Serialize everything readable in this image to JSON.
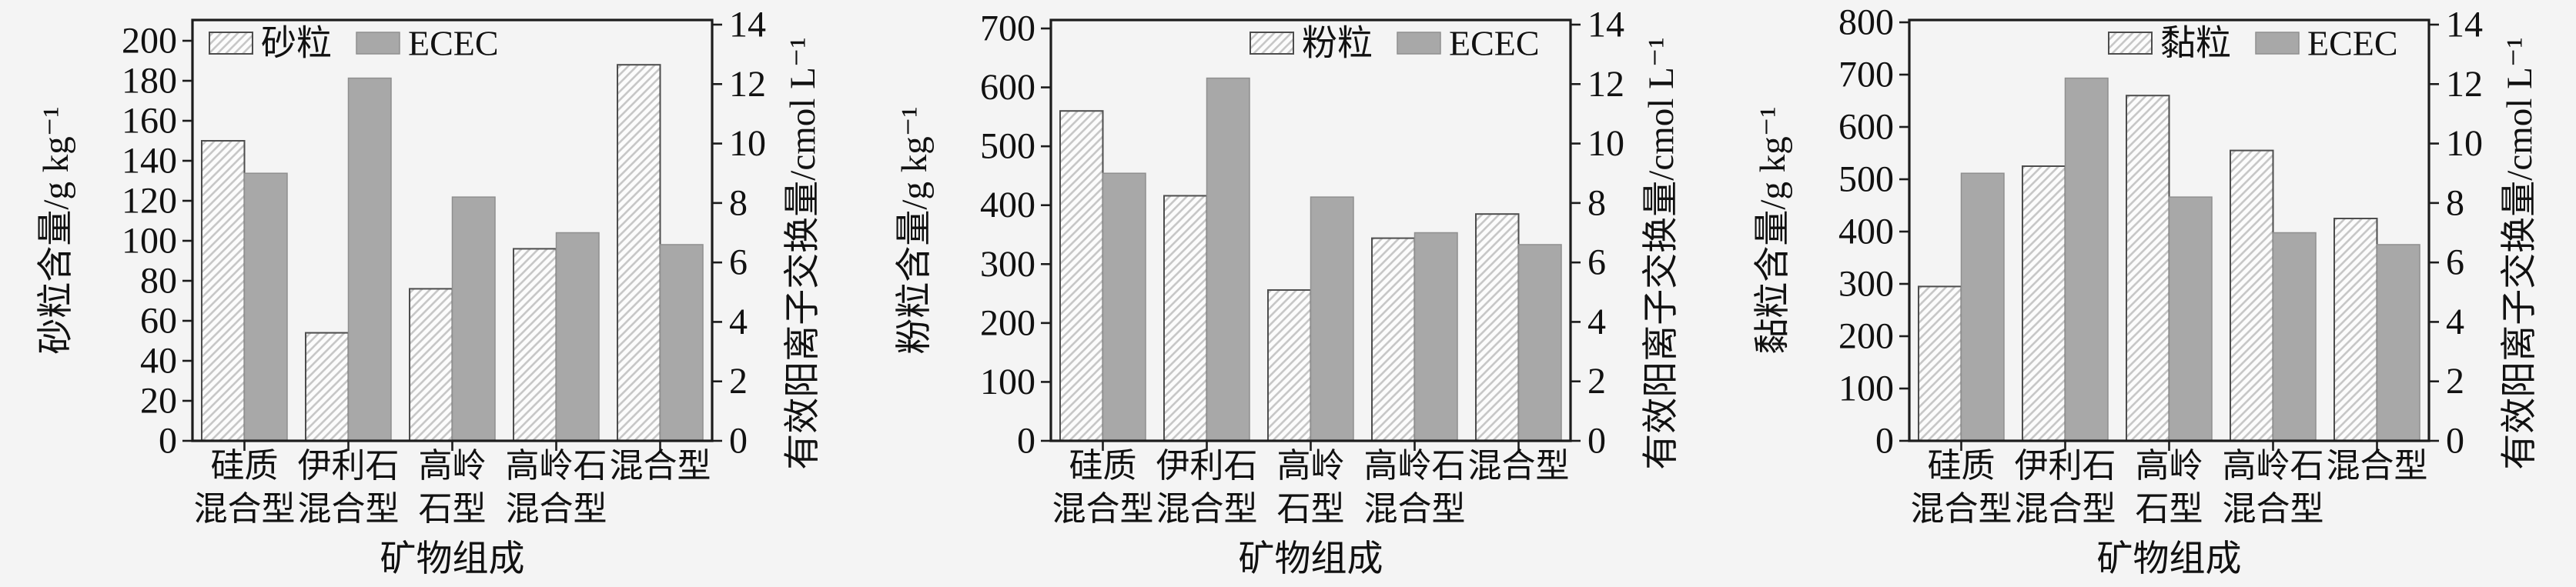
{
  "figure": {
    "background": "#f4f4f4",
    "frame_color": "#1c1c1c",
    "text_color": "#111111",
    "ecec_fill": "#a8a8a8",
    "ecec_edge": "#8f8f8f",
    "hatch_fill": "#fcfcfc",
    "hatch_line_color": "#c7c7c7",
    "hatch_edge": "#4d4d4d"
  },
  "chart_data": [
    {
      "type": "bar",
      "panel": "sand",
      "title": "",
      "categories": [
        "硅质混合型",
        "伊利石混合型",
        "高岭石型",
        "高岭石混合型",
        "混合型"
      ],
      "categories_line1": [
        "硅质",
        "伊利石",
        "高岭",
        "高岭石",
        "混合型"
      ],
      "categories_line2": [
        "混合型",
        "混合型",
        "石型",
        "混合型",
        ""
      ],
      "xlabel": "矿物组成",
      "ylabel_left": "砂粒含量/g kg⁻¹",
      "ylabel_right": "有效阳离子交换量/cmol L⁻¹",
      "ylim_left": [
        0,
        200
      ],
      "ytick_step_left": 20,
      "ylim_right": [
        0,
        14
      ],
      "ytick_step_right": 2,
      "grid": false,
      "legend_position": "top-left",
      "series": [
        {
          "name": "砂粒",
          "axis": "left",
          "style": "hatched",
          "values": [
            150,
            54,
            76,
            96,
            188
          ]
        },
        {
          "name": "ECEC",
          "axis": "right",
          "style": "solid",
          "values": [
            9.0,
            12.2,
            8.2,
            7.0,
            6.6
          ]
        }
      ]
    },
    {
      "type": "bar",
      "panel": "silt",
      "title": "",
      "categories": [
        "硅质混合型",
        "伊利石混合型",
        "高岭石型",
        "高岭石混合型",
        "混合型"
      ],
      "categories_line1": [
        "硅质",
        "伊利石",
        "高岭",
        "高岭石",
        "混合型"
      ],
      "categories_line2": [
        "混合型",
        "混合型",
        "石型",
        "混合型",
        ""
      ],
      "xlabel": "矿物组成",
      "ylabel_left": "粉粒含量/g kg⁻¹",
      "ylabel_right": "有效阳离子交换量/cmol L⁻¹",
      "ylim_left": [
        0,
        700
      ],
      "ytick_step_left": 100,
      "ylim_right": [
        0,
        14
      ],
      "ytick_step_right": 2,
      "grid": false,
      "legend_position": "top-right",
      "series": [
        {
          "name": "粉粒",
          "axis": "left",
          "style": "hatched",
          "values": [
            560,
            416,
            256,
            344,
            385
          ]
        },
        {
          "name": "ECEC",
          "axis": "right",
          "style": "solid",
          "values": [
            9.0,
            12.2,
            8.2,
            7.0,
            6.6
          ]
        }
      ]
    },
    {
      "type": "bar",
      "panel": "clay",
      "title": "",
      "categories": [
        "硅质混合型",
        "伊利石混合型",
        "高岭石型",
        "高岭石混合型",
        "混合型"
      ],
      "categories_line1": [
        "硅质",
        "伊利石",
        "高岭",
        "高岭石",
        "混合型"
      ],
      "categories_line2": [
        "混合型",
        "混合型",
        "石型",
        "混合型",
        ""
      ],
      "xlabel": "矿物组成",
      "ylabel_left": "黏粒含量/g kg⁻¹",
      "ylabel_right": "有效阳离子交换量/cmol L⁻¹",
      "ylim_left": [
        0,
        800
      ],
      "ytick_step_left": 100,
      "ylim_right": [
        0,
        14
      ],
      "ytick_step_right": 2,
      "grid": false,
      "legend_position": "top-right",
      "series": [
        {
          "name": "黏粒",
          "axis": "left",
          "style": "hatched",
          "values": [
            295,
            525,
            660,
            555,
            425
          ]
        },
        {
          "name": "ECEC",
          "axis": "right",
          "style": "solid",
          "values": [
            9.0,
            12.2,
            8.2,
            7.0,
            6.6
          ]
        }
      ]
    }
  ]
}
